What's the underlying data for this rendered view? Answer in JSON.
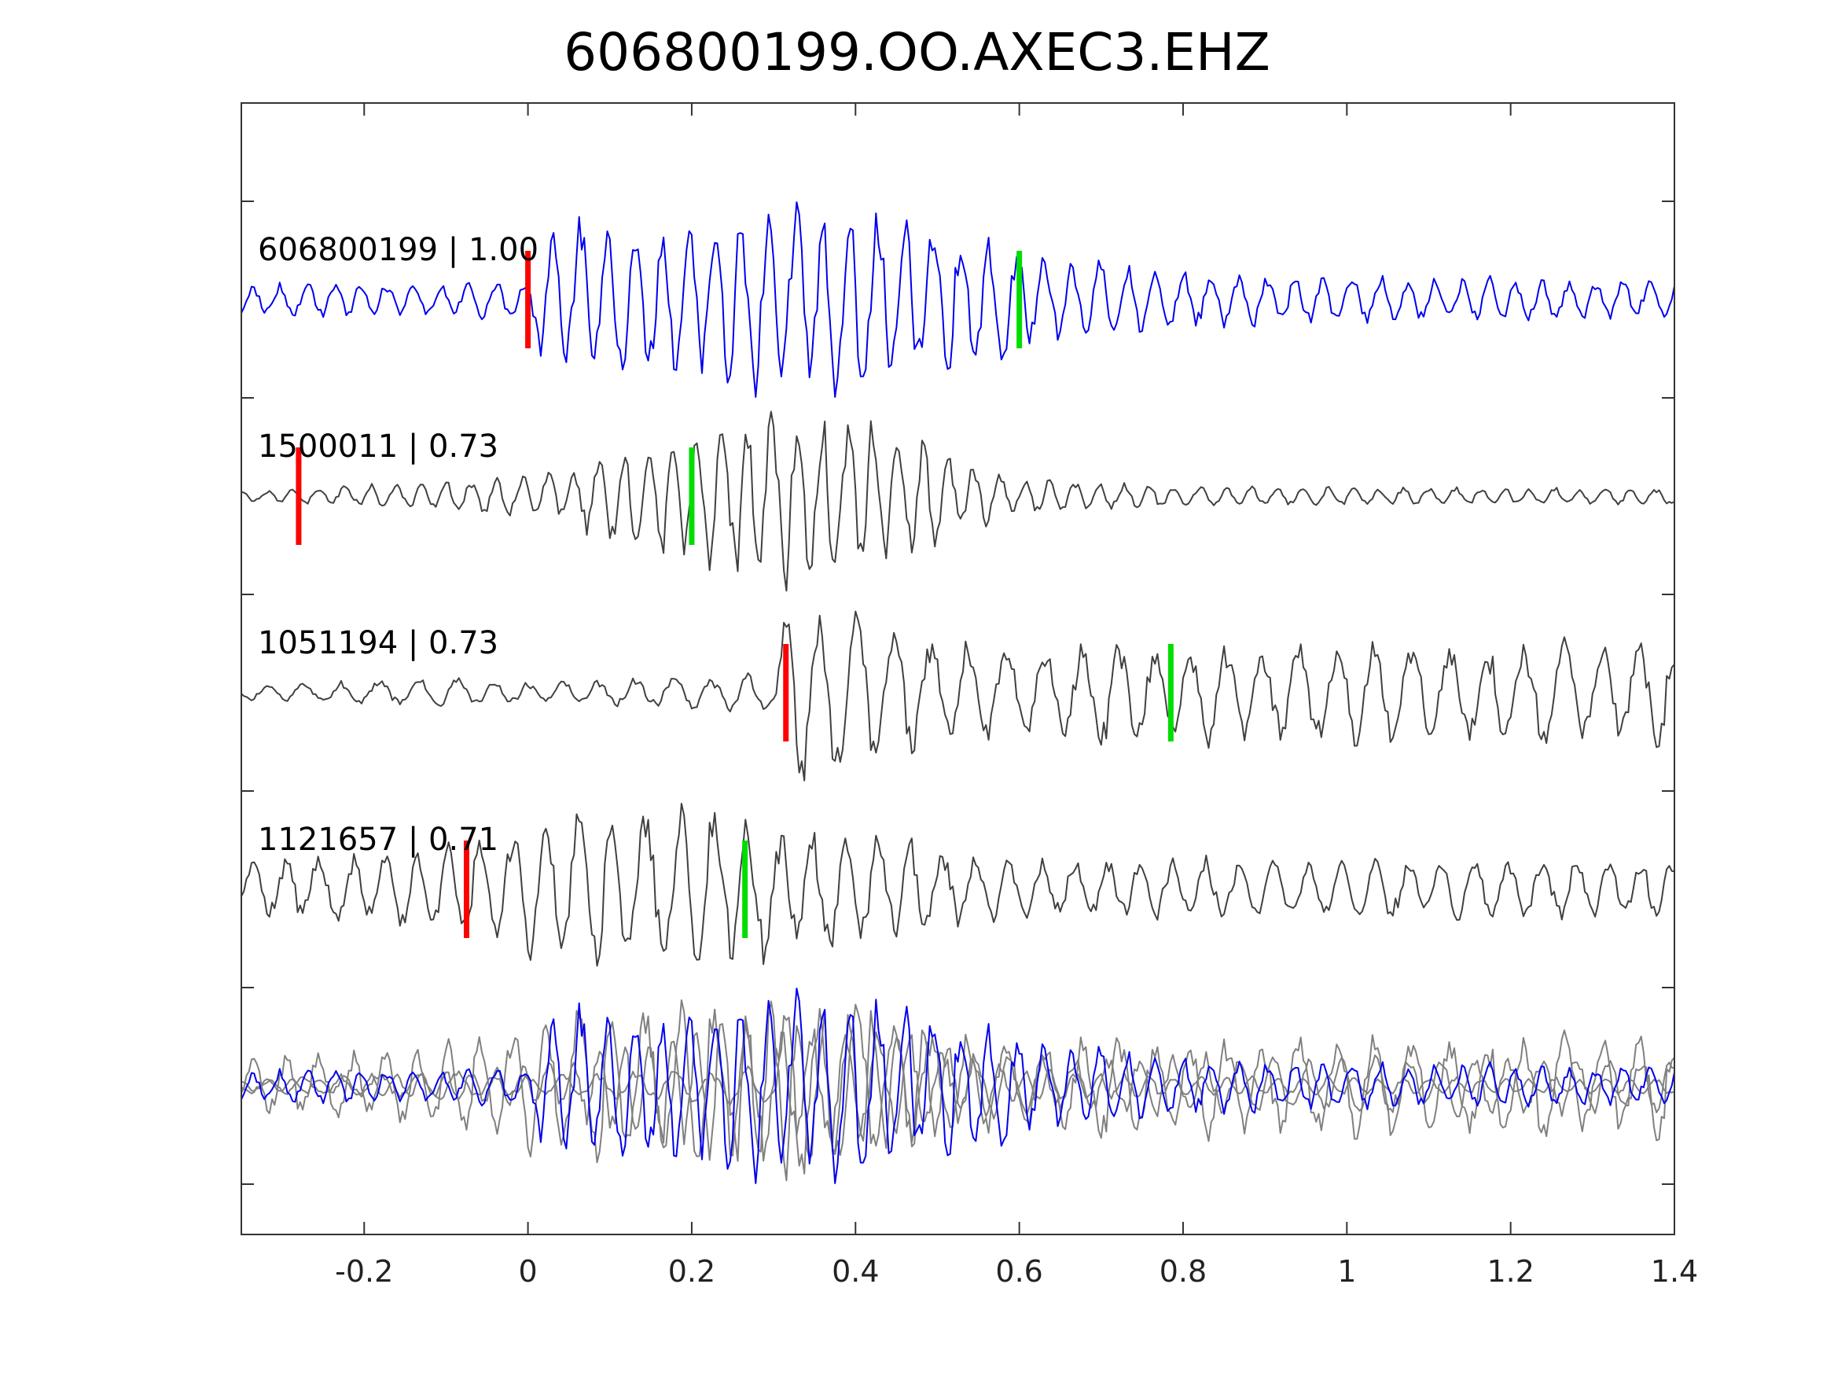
{
  "chart_data": {
    "type": "line",
    "title": "606800199.OO.AXEC3.EHZ",
    "xlabel": "",
    "ylabel": "",
    "xlim": [
      -0.35,
      1.4
    ],
    "xticks": [
      "-0.2",
      "0",
      "0.2",
      "0.4",
      "0.6",
      "0.8",
      "1",
      "1.2",
      "1.4"
    ],
    "xtick_values": [
      -0.2,
      0,
      0.2,
      0.4,
      0.6,
      0.8,
      1,
      1.2,
      1.4
    ],
    "grid": false,
    "legend": "none",
    "traces": [
      {
        "label": "606800199 | 1.00",
        "color": "#0000ee",
        "p_pick": 0.0,
        "s_pick": 0.6,
        "envelope": [
          [
            -0.35,
            0.15
          ],
          [
            0.0,
            0.2
          ],
          [
            0.03,
            0.9
          ],
          [
            0.2,
            0.75
          ],
          [
            0.35,
            1.0
          ],
          [
            0.45,
            0.85
          ],
          [
            0.6,
            0.6
          ],
          [
            0.7,
            0.35
          ],
          [
            0.9,
            0.25
          ],
          [
            1.4,
            0.2
          ]
        ],
        "period": 0.033
      },
      {
        "label": "1500011 | 0.73",
        "color": "#404040",
        "p_pick": -0.28,
        "s_pick": 0.2,
        "envelope": [
          [
            -0.35,
            0.05
          ],
          [
            -0.1,
            0.15
          ],
          [
            0.05,
            0.25
          ],
          [
            0.1,
            0.45
          ],
          [
            0.2,
            0.7
          ],
          [
            0.3,
            0.95
          ],
          [
            0.4,
            0.85
          ],
          [
            0.48,
            0.55
          ],
          [
            0.6,
            0.2
          ],
          [
            0.8,
            0.1
          ],
          [
            1.4,
            0.08
          ]
        ],
        "period": 0.031
      },
      {
        "label": "1051194 | 0.73",
        "color": "#404040",
        "p_pick": 0.315,
        "s_pick": 0.785,
        "envelope": [
          [
            -0.35,
            0.08
          ],
          [
            -0.1,
            0.15
          ],
          [
            0.0,
            0.1
          ],
          [
            0.3,
            0.2
          ],
          [
            0.32,
            1.0
          ],
          [
            0.4,
            0.8
          ],
          [
            0.5,
            0.5
          ],
          [
            0.6,
            0.45
          ],
          [
            0.7,
            0.6
          ],
          [
            0.8,
            0.5
          ],
          [
            1.0,
            0.5
          ],
          [
            1.4,
            0.55
          ]
        ],
        "period": 0.045
      },
      {
        "label": "1121657 | 0.71",
        "color": "#404040",
        "p_pick": -0.075,
        "s_pick": 0.265,
        "envelope": [
          [
            -0.35,
            0.25
          ],
          [
            -0.1,
            0.45
          ],
          [
            0.0,
            0.6
          ],
          [
            0.05,
            0.9
          ],
          [
            0.2,
            0.85
          ],
          [
            0.27,
            0.7
          ],
          [
            0.45,
            0.55
          ],
          [
            0.55,
            0.3
          ],
          [
            0.8,
            0.3
          ],
          [
            1.4,
            0.3
          ]
        ],
        "period": 0.04
      }
    ],
    "overlay": {
      "main_color": "#0000ee",
      "other_color": "#808080"
    },
    "pick_colors": {
      "p": "#ff0000",
      "s": "#00dd00"
    }
  }
}
